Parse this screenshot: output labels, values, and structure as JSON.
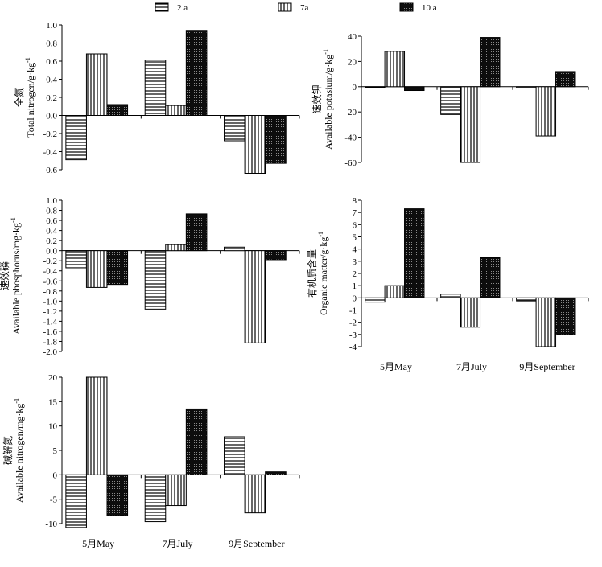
{
  "legend": {
    "entries": [
      {
        "label": "2 a",
        "pattern": "horizontal-stripes"
      },
      {
        "label": "7a",
        "pattern": "vertical-stripes"
      },
      {
        "label": "10 a",
        "pattern": "dark-dotted"
      }
    ]
  },
  "chart_data": [
    {
      "type": "bar",
      "title": "",
      "ylabel_cn": "全氮",
      "ylabel": "Total nitrogen/g·kg",
      "ylabel_sup": "-1",
      "categories": [
        "5月May",
        "7月July",
        "9月September"
      ],
      "show_category_labels": false,
      "ylim": [
        -0.6,
        1.0
      ],
      "yticks": [
        -0.6,
        -0.4,
        -0.2,
        0.0,
        0.2,
        0.4,
        0.6,
        0.8,
        1.0
      ],
      "ytick_labels": [
        "-0.6",
        "-0.4",
        "-0.2",
        "0.0",
        "0.2",
        "0.4",
        "0.6",
        "0.8",
        "1.0"
      ],
      "series": [
        {
          "name": "2 a",
          "values": [
            -0.49,
            0.61,
            -0.28
          ]
        },
        {
          "name": "7a",
          "values": [
            0.68,
            0.11,
            -0.64
          ]
        },
        {
          "name": "10 a",
          "values": [
            0.12,
            0.94,
            -0.53
          ]
        }
      ]
    },
    {
      "type": "bar",
      "title": "",
      "ylabel_cn": "速效钾",
      "ylabel": "Available potasium/g·kg",
      "ylabel_sup": "-1",
      "categories": [
        "5月May",
        "7月July",
        "9月September"
      ],
      "show_category_labels": false,
      "ylim": [
        -60,
        40
      ],
      "yticks": [
        -60,
        -40,
        -20,
        0,
        20,
        40
      ],
      "ytick_labels": [
        "-60",
        "-40",
        "-20",
        "0",
        "20",
        "40"
      ],
      "series": [
        {
          "name": "2 a",
          "values": [
            -0.5,
            -22,
            -1
          ]
        },
        {
          "name": "7a",
          "values": [
            28,
            -60,
            -39
          ]
        },
        {
          "name": "10 a",
          "values": [
            -3,
            39,
            12
          ]
        }
      ]
    },
    {
      "type": "bar",
      "title": "",
      "ylabel_cn": "速效磷",
      "ylabel": "Available phosphorus/mg·kg",
      "ylabel_sup": "-1",
      "categories": [
        "5月May",
        "7月July",
        "9月September"
      ],
      "show_category_labels": false,
      "ylim": [
        -2.0,
        1.0
      ],
      "yticks": [
        -2.0,
        -1.8,
        -1.6,
        -1.4,
        -1.2,
        -1.0,
        -0.8,
        -0.6,
        -0.4,
        -0.2,
        0.0,
        0.2,
        0.4,
        0.6,
        0.8,
        1.0
      ],
      "ytick_labels": [
        "-2.0",
        "-1.8",
        "-1.6",
        "-1.4",
        "-1.2",
        "-1.0",
        "-0.8",
        "-0.6",
        "-0.4",
        "-0.2",
        "0.0",
        "0.2",
        "0.4",
        "0.6",
        "0.8",
        "1.0"
      ],
      "series": [
        {
          "name": "2 a",
          "values": [
            -0.34,
            -1.16,
            0.07
          ]
        },
        {
          "name": "7a",
          "values": [
            -0.73,
            0.12,
            -1.83
          ]
        },
        {
          "name": "10 a",
          "values": [
            -0.67,
            0.73,
            -0.18
          ]
        }
      ]
    },
    {
      "type": "bar",
      "title": "",
      "ylabel_cn": "有机质含量",
      "ylabel": "Organic matter/g·kg",
      "ylabel_sup": "-1",
      "categories": [
        "5月May",
        "7月July",
        "9月September"
      ],
      "show_category_labels": true,
      "ylim": [
        -4,
        8
      ],
      "yticks": [
        -4,
        -3,
        -2,
        -1,
        0,
        1,
        2,
        3,
        4,
        5,
        6,
        7,
        8
      ],
      "ytick_labels": [
        "-4",
        "-3",
        "-2",
        "-1",
        "0",
        "1",
        "2",
        "3",
        "4",
        "5",
        "6",
        "7",
        "8"
      ],
      "series": [
        {
          "name": "2 a",
          "values": [
            -0.35,
            0.3,
            -0.25
          ]
        },
        {
          "name": "7a",
          "values": [
            1.0,
            -2.4,
            -4.0
          ]
        },
        {
          "name": "10 a",
          "values": [
            7.3,
            3.3,
            -3.0
          ]
        }
      ]
    },
    {
      "type": "bar",
      "title": "",
      "ylabel_cn": "碱解氮",
      "ylabel": "Available nitrogen/mg·kg",
      "ylabel_sup": "-1",
      "categories": [
        "5月May",
        "7月July",
        "9月September"
      ],
      "show_category_labels": true,
      "ylim": [
        -10,
        20
      ],
      "yticks": [
        -10,
        -5,
        0,
        5,
        10,
        15,
        20
      ],
      "ytick_labels": [
        "-10",
        "-5",
        "0",
        "5",
        "10",
        "15",
        "20"
      ],
      "series": [
        {
          "name": "2 a",
          "values": [
            -10.8,
            -9.6,
            7.8
          ]
        },
        {
          "name": "7a",
          "values": [
            20.0,
            -6.3,
            -7.8
          ]
        },
        {
          "name": "10 a",
          "values": [
            -8.3,
            13.5,
            0.6
          ]
        }
      ]
    }
  ]
}
